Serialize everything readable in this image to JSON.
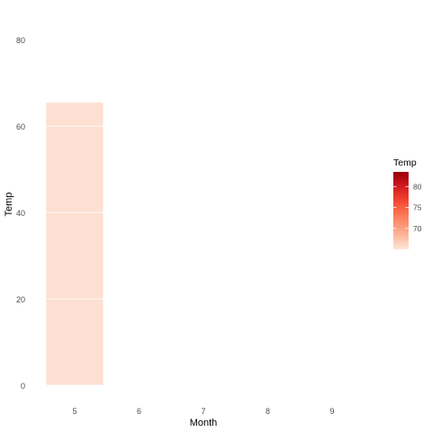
{
  "chart_data": {
    "type": "bar",
    "xlabel": "Month",
    "ylabel": "Temp",
    "x_categories": [
      "5",
      "6",
      "7",
      "8",
      "9"
    ],
    "y_ticks": [
      "0",
      "20",
      "40",
      "60",
      "80"
    ],
    "ylim": [
      0,
      86
    ],
    "grid": false,
    "legend_placement": "right",
    "bar": {
      "category": "5",
      "segments": [
        {
          "from": 0,
          "to": 20
        },
        {
          "from": 20,
          "to": 40
        },
        {
          "from": 40,
          "to": 60
        },
        {
          "from": 60,
          "to": 65.5
        }
      ],
      "fill_color": "#fde0d2",
      "edge_color": "#ffffff"
    },
    "legend": {
      "title": "Temp",
      "labels": [
        "70",
        "75",
        "80"
      ],
      "tick_values": [
        70,
        75,
        80
      ],
      "range": [
        65,
        83.5
      ],
      "colors": [
        "#fee5d9",
        "#fcbba1",
        "#fc9272",
        "#fb6a4a",
        "#ef3b2c",
        "#cb181d",
        "#99000d"
      ]
    }
  }
}
